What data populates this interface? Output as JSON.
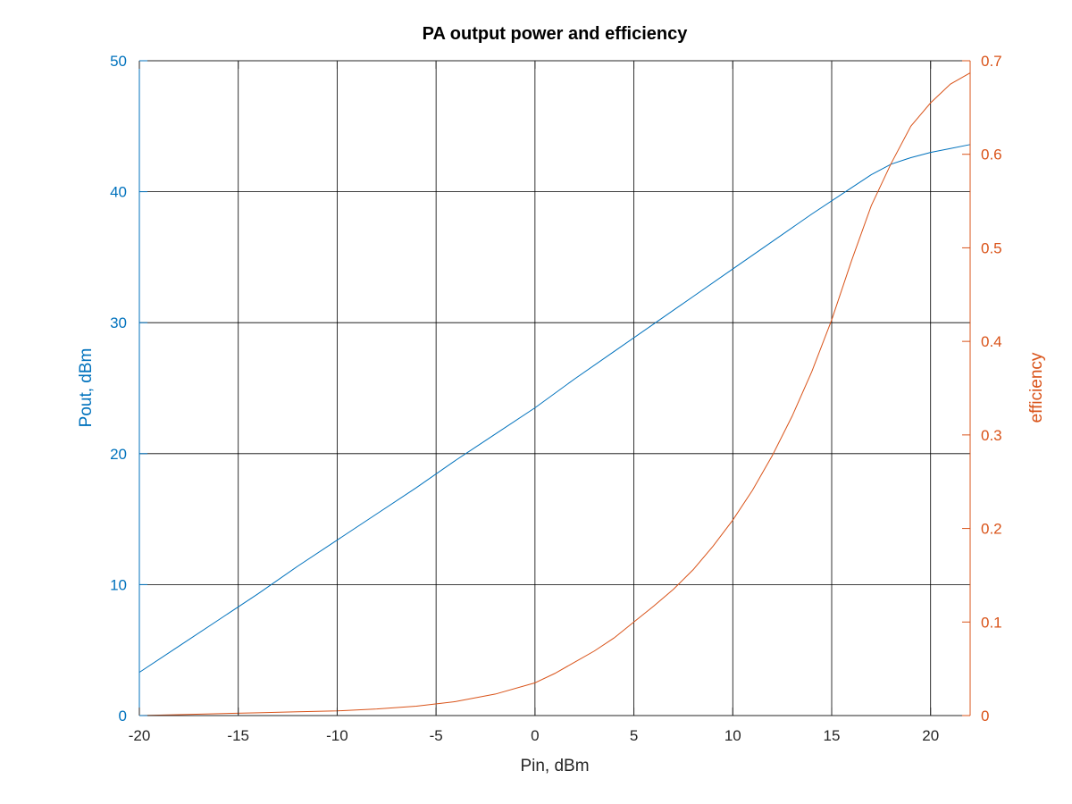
{
  "colors": {
    "left_axis": "#0072bd",
    "right_axis": "#d95319",
    "grid": "#000000",
    "text": "#262626"
  },
  "chart_data": {
    "type": "line",
    "title": "PA output power and efficiency",
    "xlabel": "Pin, dBm",
    "ylabel_left": "Pout, dBm",
    "ylabel_right": "efficiency",
    "xlim": [
      -20,
      22
    ],
    "ylim_left": [
      0,
      50
    ],
    "ylim_right": [
      0,
      0.7
    ],
    "x_ticks": [
      -20,
      -15,
      -10,
      -5,
      0,
      5,
      10,
      15,
      20
    ],
    "y_left_ticks": [
      0,
      10,
      20,
      30,
      40,
      50
    ],
    "y_right_ticks": [
      0,
      0.1,
      0.2,
      0.3,
      0.4,
      0.5,
      0.6,
      0.7
    ],
    "grid": true,
    "series": [
      {
        "axis": "left",
        "x": [
          -20,
          -18,
          -16,
          -14,
          -12,
          -10,
          -8,
          -6,
          -4,
          -2,
          0,
          2,
          4,
          6,
          8,
          10,
          12,
          14,
          16,
          17,
          18,
          19,
          20,
          21,
          22
        ],
        "values": [
          3.3,
          5.3,
          7.3,
          9.3,
          11.4,
          13.4,
          15.4,
          17.4,
          19.5,
          21.5,
          23.5,
          25.7,
          27.8,
          29.9,
          32.0,
          34.1,
          36.2,
          38.3,
          40.3,
          41.3,
          42.1,
          42.6,
          43.0,
          43.3,
          43.6
        ]
      },
      {
        "axis": "right",
        "x": [
          -20,
          -18,
          -16,
          -14,
          -12,
          -10,
          -8,
          -6,
          -4,
          -2,
          0,
          1,
          2,
          3,
          4,
          5,
          6,
          7,
          8,
          9,
          10,
          11,
          12,
          13,
          14,
          15,
          16,
          17,
          18,
          19,
          20,
          21,
          22
        ],
        "values": [
          0.0,
          0.001,
          0.002,
          0.003,
          0.004,
          0.005,
          0.007,
          0.01,
          0.015,
          0.023,
          0.035,
          0.045,
          0.057,
          0.069,
          0.083,
          0.1,
          0.117,
          0.135,
          0.156,
          0.181,
          0.209,
          0.241,
          0.278,
          0.32,
          0.368,
          0.423,
          0.486,
          0.545,
          0.59,
          0.63,
          0.655,
          0.675,
          0.687
        ]
      }
    ]
  }
}
